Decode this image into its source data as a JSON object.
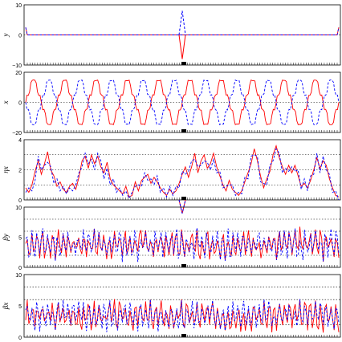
{
  "chart_data": [
    {
      "type": "line",
      "ylabel": "y",
      "ylim": [
        -10,
        10
      ],
      "yticks": [
        "10",
        "0",
        "−10"
      ],
      "grid_h": [
        0
      ],
      "series": [
        {
          "color": "#ff0000",
          "style": "solid",
          "values": [
            2.5,
            0,
            0,
            0,
            0,
            0,
            0,
            0,
            0,
            0,
            0,
            0,
            0,
            0,
            0,
            0,
            0,
            0,
            0,
            0,
            0,
            0,
            0,
            0,
            0,
            0,
            0,
            0,
            0,
            0,
            0,
            0,
            0,
            0,
            0,
            0,
            0,
            0,
            0,
            0,
            0,
            0,
            0,
            0,
            0,
            0,
            0,
            0,
            0,
            0,
            0,
            0,
            0,
            0,
            0,
            0,
            0,
            0,
            0,
            0,
            0,
            0,
            0,
            0,
            0,
            0,
            0,
            0,
            0,
            0,
            0,
            0,
            0,
            0,
            0,
            0,
            0,
            0,
            0,
            0,
            0,
            0,
            0,
            0,
            0,
            0,
            0,
            0,
            0,
            0,
            0,
            0,
            0,
            0,
            0,
            0,
            0,
            0,
            0,
            0,
            0,
            0,
            0,
            0,
            0,
            0,
            0,
            0,
            0,
            0,
            0,
            0,
            0,
            0,
            0,
            0,
            0,
            0,
            0,
            0,
            0,
            0,
            0,
            0,
            0,
            0,
            0,
            0,
            0,
            0,
            0,
            0,
            0,
            0,
            0,
            0,
            0,
            0,
            0,
            0,
            0,
            0,
            0,
            0,
            0,
            0,
            0,
            0,
            0,
            0,
            0,
            0,
            0,
            0,
            0,
            0,
            0,
            0,
            0,
            0,
            0,
            0,
            0,
            0,
            0,
            0,
            0,
            0,
            0,
            0,
            0,
            0,
            0,
            0,
            0,
            0,
            0,
            0,
            0,
            0,
            0,
            0,
            0,
            0,
            0,
            0,
            0,
            0,
            0,
            0,
            0,
            0,
            0,
            0,
            0,
            0,
            0,
            0,
            2.5
          ]
        },
        {
          "color": "#0000ff",
          "style": "dashed",
          "values": [
            2.5,
            0,
            0,
            0,
            0,
            0,
            0,
            0,
            0,
            0,
            0,
            0,
            0,
            0,
            0,
            0,
            0,
            0,
            0,
            0,
            0,
            0,
            0,
            0,
            0,
            0,
            0,
            0,
            0,
            0,
            0,
            0,
            0,
            0,
            0,
            0,
            0,
            0,
            0,
            0,
            0,
            0,
            0,
            0,
            0,
            0,
            0,
            0,
            0,
            0,
            0,
            0,
            0,
            0,
            0,
            0,
            0,
            0,
            0,
            0,
            0,
            0,
            0,
            0,
            0,
            0,
            0,
            0,
            0,
            0,
            0,
            0,
            0,
            0,
            0,
            0,
            0,
            0,
            0,
            0,
            0,
            0,
            0,
            0,
            0,
            0,
            0,
            0,
            0,
            0,
            0,
            0,
            0,
            0,
            0,
            0,
            0,
            0,
            0,
            0,
            0,
            0,
            0,
            0,
            0,
            0,
            0,
            0,
            0,
            0,
            0,
            0,
            0,
            0,
            0,
            0,
            0,
            0,
            0,
            0,
            0,
            0,
            0,
            0,
            0,
            0,
            0,
            0,
            0,
            0,
            0,
            0,
            0,
            0,
            0,
            0,
            0,
            0,
            0,
            0,
            0,
            0,
            0,
            0,
            0,
            0,
            0,
            0,
            0,
            0,
            0,
            0,
            0,
            0,
            0,
            0,
            0,
            0,
            0,
            0,
            0,
            0,
            0,
            0,
            0,
            0,
            0,
            0,
            0,
            0,
            0,
            0,
            0,
            0,
            0,
            0,
            0,
            0,
            0,
            0,
            0,
            0,
            0,
            0,
            0,
            0,
            0,
            0,
            0,
            0,
            0,
            0,
            0,
            0,
            0,
            0,
            0,
            0,
            2.5
          ]
        }
      ],
      "spikes": [
        {
          "x": 0.5,
          "red": -8.0,
          "blue": 8.0
        }
      ]
    },
    {
      "type": "line",
      "ylabel": "x",
      "ylim": [
        -20,
        20
      ],
      "yticks": [
        "20",
        "0",
        "−20"
      ],
      "grid_h": [
        0
      ],
      "waves": {
        "cycles": 10,
        "amplitude": 17
      },
      "series": [
        {
          "color": "#ff0000",
          "style": "solid",
          "phase": 0
        },
        {
          "color": "#0000ff",
          "style": "dashed",
          "phase": 3.14159
        }
      ]
    },
    {
      "type": "line",
      "ylabel": "ηx",
      "ylim": [
        0,
        4
      ],
      "yticks": [
        "4",
        "2",
        "0"
      ],
      "grid_h": [
        1,
        2,
        3
      ],
      "series": [
        {
          "color": "#ff0000",
          "style": "solid",
          "values": [
            0.8,
            0.5,
            1.0,
            1.9,
            2.6,
            1.7,
            2.4,
            3.2,
            2.0,
            1.6,
            0.9,
            1.2,
            0.7,
            0.5,
            0.9,
            1.1,
            0.7,
            1.5,
            2.6,
            2.9,
            2.1,
            3.0,
            2.4,
            2.9,
            2.2,
            1.8,
            2.5,
            1.4,
            1.0,
            0.8,
            0.6,
            0.4,
            0.9,
            0.2,
            0.3,
            1.2,
            0.6,
            1.3,
            1.5,
            1.7,
            1.1,
            1.5,
            1.2,
            0.8,
            0.5,
            0.3,
            0.7,
            0.4,
            0.6,
            1.1,
            1.7,
            2.2,
            1.5,
            2.2,
            3.1,
            1.8,
            2.6,
            3.0,
            2.1,
            2.4,
            3.1,
            2.2,
            1.6,
            1.0,
            0.6,
            1.3,
            0.7,
            0.5,
            0.3,
            0.6,
            1.2,
            1.8,
            2.4,
            3.4,
            2.6,
            1.6,
            0.8,
            1.4,
            1.9,
            3.0,
            3.6,
            2.8,
            2.2,
            1.7,
            2.3,
            1.8,
            2.3,
            1.6,
            0.9,
            1.1,
            0.8,
            1.3,
            2.0,
            2.8,
            2.1,
            2.6,
            2.3,
            1.4,
            0.8,
            0.3,
            0.2
          ]
        },
        {
          "color": "#0000ff",
          "style": "dashed",
          "values": [
            0.5,
            0.8,
            0.6,
            1.3,
            2.9,
            2.0,
            2.3,
            2.5,
            2.2,
            1.1,
            1.4,
            0.6,
            0.9,
            0.4,
            0.8,
            0.6,
            1.0,
            1.8,
            2.2,
            3.1,
            2.4,
            2.7,
            2.0,
            3.1,
            2.6,
            1.4,
            2.1,
            1.0,
            1.4,
            0.5,
            0.8,
            0.3,
            0.6,
            0.1,
            0.5,
            0.9,
            1.0,
            0.9,
            1.8,
            1.3,
            1.4,
            1.0,
            1.6,
            0.5,
            0.8,
            0.2,
            0.9,
            0.3,
            0.9,
            0.8,
            1.9,
            1.7,
            1.9,
            2.6,
            2.7,
            2.2,
            2.3,
            2.6,
            2.5,
            2.0,
            2.7,
            1.8,
            1.9,
            0.8,
            0.9,
            1.0,
            1.0,
            0.3,
            0.5,
            0.4,
            1.5,
            1.4,
            2.9,
            3.0,
            2.9,
            1.2,
            1.1,
            1.0,
            2.3,
            2.6,
            3.4,
            3.1,
            1.8,
            2.1,
            1.9,
            2.2,
            1.9,
            2.0,
            0.7,
            1.4,
            0.6,
            1.6,
            1.7,
            3.1,
            1.8,
            2.9,
            2.0,
            1.7,
            0.5,
            0.6,
            0.0
          ]
        }
      ],
      "spikes": [
        {
          "x": 0.5,
          "red": -0.9,
          "blue": -0.9
        }
      ]
    },
    {
      "type": "line",
      "ylabel": "βy",
      "ylim": [
        0,
        10
      ],
      "yticks": [
        "10",
        "5",
        "0"
      ],
      "grid_h": [
        2,
        6,
        8
      ],
      "osc": {
        "n": 202,
        "mid": 3.8,
        "amp": 1.8,
        "seed_red": 7,
        "seed_blue": 11
      },
      "series": [
        {
          "color": "#ff0000",
          "style": "solid"
        },
        {
          "color": "#0000ff",
          "style": "dashed"
        }
      ]
    },
    {
      "type": "line",
      "ylabel": "βx",
      "ylim": [
        0,
        10
      ],
      "yticks": [
        "10",
        "5",
        "0"
      ],
      "grid_h": [
        2,
        6,
        8
      ],
      "osc": {
        "n": 202,
        "mid": 3.4,
        "amp": 1.6,
        "seed_red": 3,
        "seed_blue": 5
      },
      "series": [
        {
          "color": "#ff0000",
          "style": "solid"
        },
        {
          "color": "#0000ff",
          "style": "dashed"
        }
      ]
    }
  ]
}
